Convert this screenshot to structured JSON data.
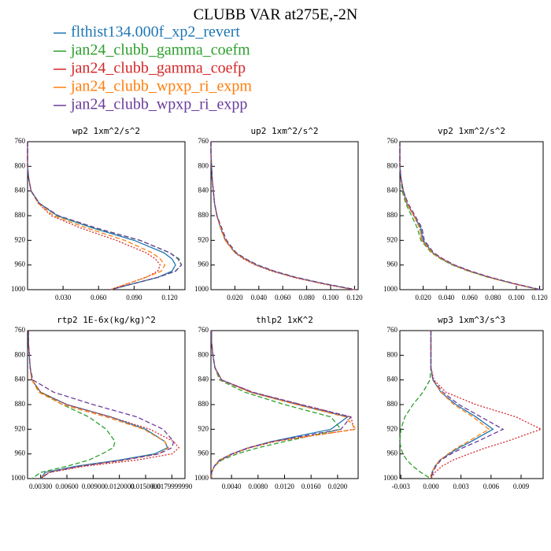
{
  "title": "CLUBB VAR at275E,-2N",
  "legend": [
    {
      "name": "flthist134.000f_xp2_revert",
      "color": "#1f77b4"
    },
    {
      "name": "jan24_clubb_gamma_coefm",
      "color": "#2ca02c"
    },
    {
      "name": "jan24_clubb_gamma_coefp",
      "color": "#d62728"
    },
    {
      "name": "jan24_clubb_wpxp_ri_expm",
      "color": "#ff7f0e"
    },
    {
      "name": "jan24_clubb_wpxp_ri_expp",
      "color": "#6a3d9a"
    }
  ],
  "chart_data": [
    {
      "type": "line",
      "title": "wp2   1xm^2/s^2",
      "y": [
        760,
        780,
        800,
        820,
        840,
        860,
        880,
        900,
        920,
        940,
        950,
        960,
        970,
        980,
        990,
        1000
      ],
      "ylim": [
        1000,
        760
      ],
      "yticks": [
        760,
        800,
        840,
        880,
        920,
        960,
        1000
      ],
      "xlim": [
        0,
        0.133
      ],
      "xticks": [
        {
          "value": 0.03,
          "label": "0.030"
        },
        {
          "value": 0.06,
          "label": "0.060"
        },
        {
          "value": 0.09,
          "label": "0.090"
        },
        {
          "value": 0.12,
          "label": "0.120"
        }
      ],
      "series": [
        {
          "values": [
            0,
            0,
            0,
            0.001,
            0.003,
            0.01,
            0.025,
            0.055,
            0.09,
            0.115,
            0.122,
            0.125,
            0.122,
            0.11,
            0.09,
            0.07
          ]
        },
        {
          "values": [
            0,
            0,
            0,
            0.001,
            0.003,
            0.01,
            0.025,
            0.057,
            0.095,
            0.12,
            0.128,
            0.13,
            0.125,
            0.11,
            0.09,
            0.07
          ]
        },
        {
          "values": [
            0,
            0,
            0,
            0.001,
            0.003,
            0.009,
            0.02,
            0.045,
            0.075,
            0.1,
            0.108,
            0.112,
            0.11,
            0.1,
            0.085,
            0.07
          ]
        },
        {
          "values": [
            0,
            0,
            0,
            0.001,
            0.003,
            0.009,
            0.022,
            0.05,
            0.082,
            0.105,
            0.112,
            0.116,
            0.113,
            0.1,
            0.085,
            0.07
          ]
        },
        {
          "values": [
            0,
            0,
            0,
            0.001,
            0.003,
            0.01,
            0.026,
            0.058,
            0.095,
            0.12,
            0.127,
            0.13,
            0.125,
            0.11,
            0.09,
            0.07
          ]
        }
      ]
    },
    {
      "type": "line",
      "title": "up2   1xm^2/s^2",
      "y": [
        760,
        780,
        800,
        820,
        840,
        860,
        880,
        900,
        920,
        940,
        950,
        960,
        970,
        980,
        990,
        1000
      ],
      "ylim": [
        1000,
        760
      ],
      "yticks": [
        760,
        800,
        840,
        880,
        920,
        960,
        1000
      ],
      "xlim": [
        0,
        0.123
      ],
      "xticks": [
        {
          "value": 0.02,
          "label": "0.020"
        },
        {
          "value": 0.04,
          "label": "0.040"
        },
        {
          "value": 0.06,
          "label": "0.060"
        },
        {
          "value": 0.08,
          "label": "0.080"
        },
        {
          "value": 0.1,
          "label": "0.100"
        },
        {
          "value": 0.12,
          "label": "0.120"
        }
      ],
      "series": [
        {
          "values": [
            0,
            0,
            0.0005,
            0.001,
            0.002,
            0.003,
            0.005,
            0.008,
            0.012,
            0.02,
            0.028,
            0.038,
            0.052,
            0.07,
            0.093,
            0.12
          ]
        },
        {
          "values": [
            0,
            0,
            0.0005,
            0.001,
            0.002,
            0.003,
            0.005,
            0.008,
            0.013,
            0.021,
            0.029,
            0.039,
            0.053,
            0.071,
            0.094,
            0.121
          ]
        },
        {
          "values": [
            0,
            0,
            0.0005,
            0.001,
            0.002,
            0.003,
            0.005,
            0.008,
            0.012,
            0.02,
            0.027,
            0.037,
            0.051,
            0.069,
            0.092,
            0.119
          ]
        },
        {
          "values": [
            0,
            0,
            0.0005,
            0.001,
            0.002,
            0.003,
            0.005,
            0.008,
            0.012,
            0.02,
            0.028,
            0.038,
            0.052,
            0.07,
            0.093,
            0.12
          ]
        },
        {
          "values": [
            0,
            0,
            0.0005,
            0.001,
            0.002,
            0.003,
            0.005,
            0.009,
            0.013,
            0.021,
            0.029,
            0.039,
            0.053,
            0.071,
            0.094,
            0.121
          ]
        }
      ]
    },
    {
      "type": "line",
      "title": "vp2   1xm^2/s^2",
      "y": [
        760,
        780,
        800,
        820,
        840,
        860,
        880,
        900,
        920,
        940,
        950,
        960,
        970,
        980,
        990,
        1000
      ],
      "ylim": [
        1000,
        760
      ],
      "yticks": [
        760,
        800,
        840,
        880,
        920,
        960,
        1000
      ],
      "xlim": [
        0,
        0.123
      ],
      "xticks": [
        {
          "value": 0.02,
          "label": "0.020"
        },
        {
          "value": 0.04,
          "label": "0.040"
        },
        {
          "value": 0.06,
          "label": "0.060"
        },
        {
          "value": 0.08,
          "label": "0.080"
        },
        {
          "value": 0.1,
          "label": "0.100"
        },
        {
          "value": 0.12,
          "label": "0.120"
        }
      ],
      "series": [
        {
          "values": [
            0,
            0,
            0,
            0.001,
            0.003,
            0.006,
            0.012,
            0.018,
            0.02,
            0.028,
            0.036,
            0.046,
            0.06,
            0.077,
            0.097,
            0.12
          ]
        },
        {
          "values": [
            0,
            0,
            0,
            0.001,
            0.002,
            0.005,
            0.01,
            0.015,
            0.018,
            0.027,
            0.035,
            0.045,
            0.059,
            0.076,
            0.097,
            0.12
          ]
        },
        {
          "values": [
            0,
            0,
            0,
            0.001,
            0.003,
            0.006,
            0.012,
            0.017,
            0.019,
            0.028,
            0.036,
            0.046,
            0.06,
            0.077,
            0.097,
            0.12
          ]
        },
        {
          "values": [
            0,
            0,
            0,
            0.001,
            0.003,
            0.006,
            0.012,
            0.017,
            0.019,
            0.028,
            0.036,
            0.046,
            0.06,
            0.077,
            0.097,
            0.12
          ]
        },
        {
          "values": [
            0,
            0,
            0,
            0.001,
            0.003,
            0.007,
            0.013,
            0.019,
            0.021,
            0.029,
            0.037,
            0.047,
            0.061,
            0.078,
            0.098,
            0.121
          ]
        }
      ]
    },
    {
      "type": "line",
      "title": "rtp2   1E-6x(kg/kg)^2",
      "y": [
        760,
        780,
        800,
        820,
        840,
        860,
        880,
        900,
        920,
        940,
        950,
        960,
        970,
        980,
        990,
        1000
      ],
      "ylim": [
        1000,
        760
      ],
      "yticks": [
        760,
        800,
        840,
        880,
        920,
        960,
        1000
      ],
      "xlim": [
        0.0015,
        0.0195
      ],
      "xticks": [
        {
          "value": 0.003,
          "label": "0.00300"
        },
        {
          "value": 0.006,
          "label": "0.00600"
        },
        {
          "value": 0.009,
          "label": "0.00900"
        },
        {
          "value": 0.012,
          "label": "0.0120000"
        },
        {
          "value": 0.015,
          "label": "0.0150000"
        },
        {
          "value": 0.018,
          "label": "0.0179999990"
        }
      ],
      "series": [
        {
          "values": [
            0.0016,
            0.0016,
            0.0017,
            0.0018,
            0.002,
            0.003,
            0.006,
            0.011,
            0.015,
            0.0172,
            0.0175,
            0.016,
            0.012,
            0.007,
            0.0035,
            0.003
          ]
        },
        {
          "values": [
            0.0016,
            0.0016,
            0.0017,
            0.0018,
            0.002,
            0.003,
            0.0055,
            0.0085,
            0.0105,
            0.0115,
            0.0113,
            0.01,
            0.0085,
            0.006,
            0.003,
            0.002
          ]
        },
        {
          "values": [
            0.0016,
            0.0016,
            0.0017,
            0.0018,
            0.002,
            0.003,
            0.006,
            0.011,
            0.0155,
            0.0182,
            0.0188,
            0.018,
            0.014,
            0.008,
            0.004,
            0.003
          ]
        },
        {
          "values": [
            0.0016,
            0.0016,
            0.0017,
            0.0018,
            0.002,
            0.0028,
            0.0055,
            0.0105,
            0.0148,
            0.0172,
            0.0176,
            0.0165,
            0.0125,
            0.0075,
            0.0038,
            0.003
          ]
        },
        {
          "values": [
            0.0016,
            0.0016,
            0.0017,
            0.0018,
            0.0021,
            0.0045,
            0.009,
            0.014,
            0.017,
            0.0182,
            0.018,
            0.0165,
            0.0125,
            0.0075,
            0.004,
            0.003
          ]
        }
      ]
    },
    {
      "type": "line",
      "title": "thlp2   1xK^2",
      "y": [
        760,
        780,
        800,
        820,
        840,
        860,
        880,
        900,
        920,
        940,
        950,
        960,
        970,
        980,
        990,
        1000
      ],
      "ylim": [
        1000,
        760
      ],
      "yticks": [
        760,
        800,
        840,
        880,
        920,
        960,
        1000
      ],
      "xlim": [
        0.0009,
        0.0231
      ],
      "xticks": [
        {
          "value": 0.004,
          "label": "0.0040"
        },
        {
          "value": 0.008,
          "label": "0.0080"
        },
        {
          "value": 0.012,
          "label": "0.0120"
        },
        {
          "value": 0.016,
          "label": "0.0160"
        },
        {
          "value": 0.02,
          "label": "0.0200"
        }
      ],
      "series": [
        {
          "values": [
            0.001,
            0.001,
            0.0012,
            0.0015,
            0.0025,
            0.007,
            0.014,
            0.0215,
            0.019,
            0.01,
            0.0065,
            0.004,
            0.0022,
            0.0014,
            0.001,
            0.001
          ]
        },
        {
          "values": [
            0.001,
            0.001,
            0.0012,
            0.0015,
            0.0022,
            0.006,
            0.012,
            0.019,
            0.0205,
            0.012,
            0.008,
            0.0048,
            0.0025,
            0.0014,
            0.001,
            0.001
          ]
        },
        {
          "values": [
            0.001,
            0.001,
            0.0012,
            0.0015,
            0.0025,
            0.0072,
            0.0145,
            0.022,
            0.0225,
            0.0105,
            0.0068,
            0.0042,
            0.0023,
            0.0014,
            0.001,
            0.001
          ]
        },
        {
          "values": [
            0.001,
            0.001,
            0.0012,
            0.0015,
            0.0024,
            0.0068,
            0.0138,
            0.0212,
            0.0228,
            0.0102,
            0.0066,
            0.0041,
            0.0022,
            0.0014,
            0.001,
            0.001
          ]
        },
        {
          "values": [
            0.001,
            0.001,
            0.0012,
            0.0015,
            0.0025,
            0.0072,
            0.0145,
            0.022,
            0.0205,
            0.0102,
            0.0066,
            0.0041,
            0.0022,
            0.0014,
            0.001,
            0.001
          ]
        }
      ]
    },
    {
      "type": "line",
      "title": "wp3   1xm^3/s^3",
      "y": [
        760,
        780,
        800,
        820,
        840,
        860,
        880,
        900,
        920,
        940,
        950,
        960,
        970,
        980,
        990,
        1000
      ],
      "ylim": [
        1000,
        760
      ],
      "yticks": [
        760,
        800,
        840,
        880,
        920,
        960,
        1000
      ],
      "xlim": [
        -0.0031,
        0.0112
      ],
      "xticks": [
        {
          "value": -0.003,
          "label": "-0.003"
        },
        {
          "value": 0,
          "label": "0.000"
        },
        {
          "value": 0.003,
          "label": "0.003"
        },
        {
          "value": 0.006,
          "label": "0.006"
        },
        {
          "value": 0.009,
          "label": "0.009"
        }
      ],
      "series": [
        {
          "values": [
            0,
            0,
            0,
            0,
            0.0002,
            0.001,
            0.0025,
            0.0045,
            0.0062,
            0.004,
            0.0028,
            0.0018,
            0.0009,
            0.0004,
            0.0001,
            0
          ]
        },
        {
          "values": [
            0,
            0,
            0,
            0,
            -0.0001,
            -0.0008,
            -0.0018,
            -0.0026,
            -0.003,
            -0.0031,
            -0.003,
            -0.0028,
            -0.0024,
            -0.0018,
            -0.001,
            0
          ]
        },
        {
          "values": [
            0,
            0,
            0,
            0,
            0.0003,
            0.0015,
            0.0045,
            0.0085,
            0.011,
            0.0075,
            0.0055,
            0.0038,
            0.0022,
            0.0011,
            0.0004,
            0
          ]
        },
        {
          "values": [
            0,
            0,
            0,
            0,
            0.0002,
            0.001,
            0.0023,
            0.0042,
            0.0058,
            0.0037,
            0.0026,
            0.0017,
            0.0009,
            0.0004,
            0.0001,
            0
          ]
        },
        {
          "values": [
            0,
            0,
            0,
            0,
            0.0002,
            0.0012,
            0.0028,
            0.005,
            0.0072,
            0.0046,
            0.0032,
            0.002,
            0.001,
            0.0005,
            0.0002,
            0
          ]
        }
      ]
    }
  ]
}
